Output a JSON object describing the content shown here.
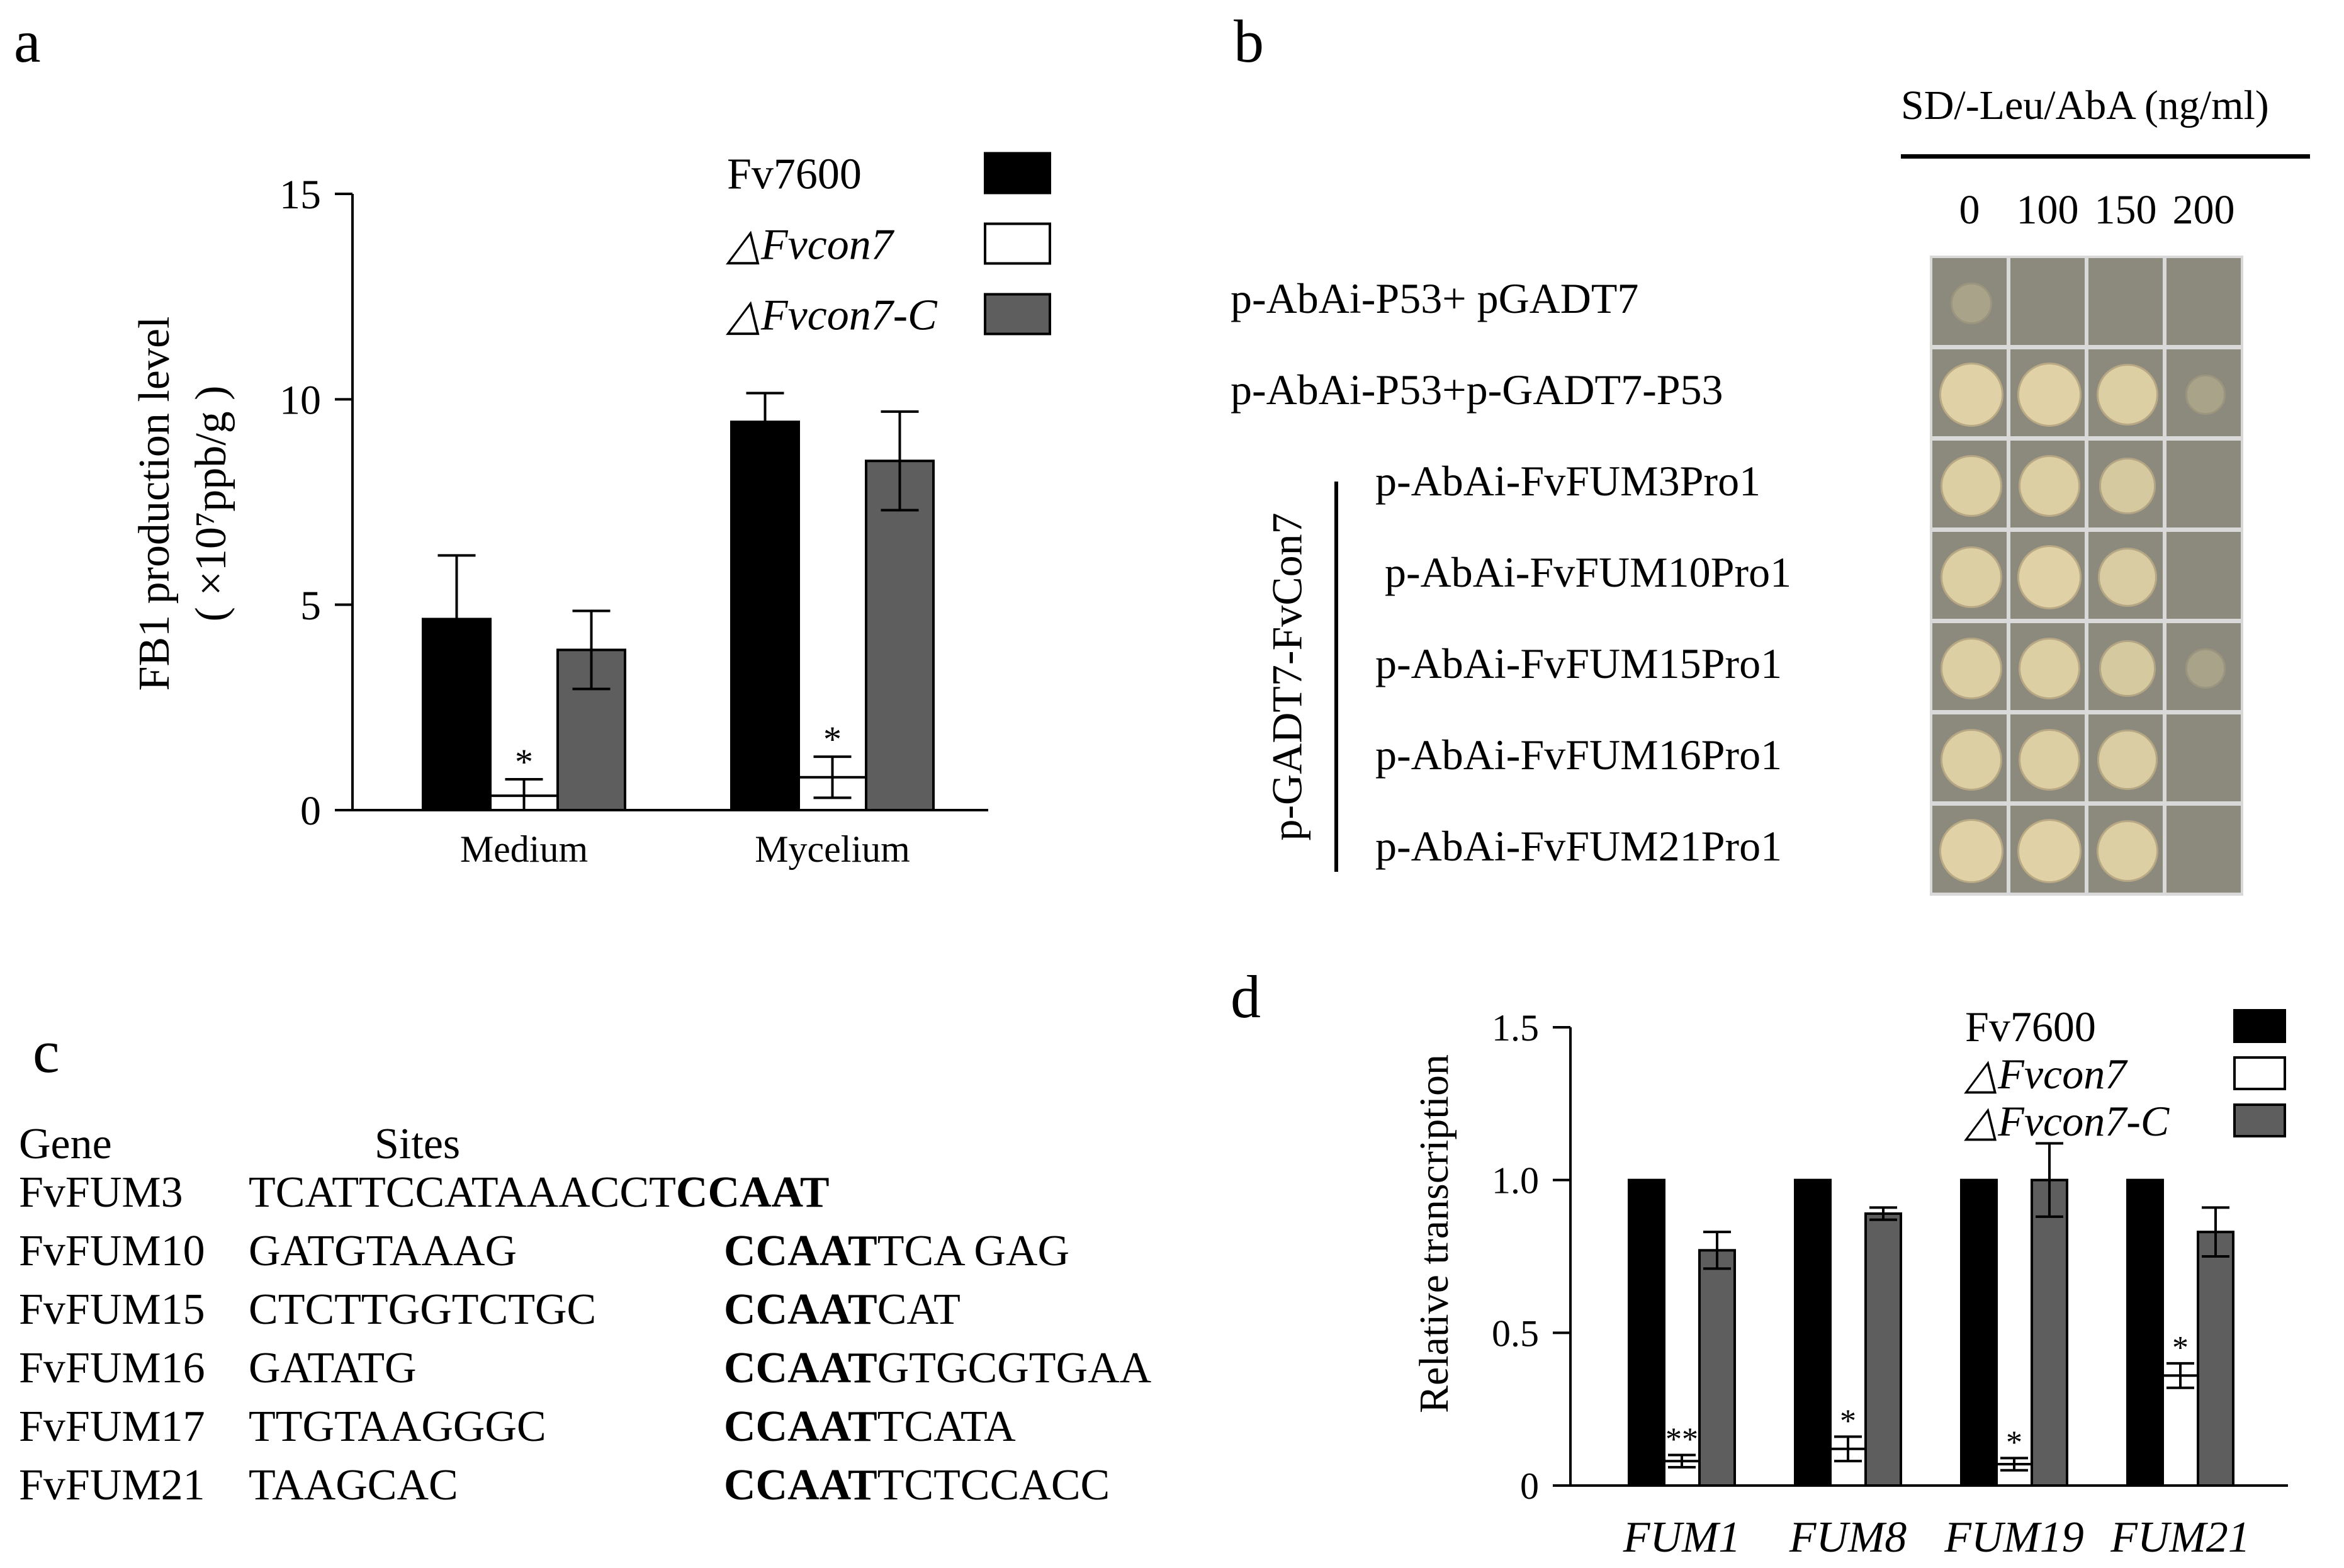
{
  "panel_labels": {
    "a": "a",
    "b": "b",
    "c": "c",
    "d": "d"
  },
  "colors": {
    "Fv7600": "#000000",
    "dFvcon7": "#ffffff",
    "dFvcon7C": "#5e5e5e",
    "plate_bg": "#8c8a7c",
    "colony": "#e0d2a6",
    "colony_edge": "#b9a985"
  },
  "chart_data": [
    {
      "type": "bar",
      "panel": "a",
      "ylabel_line1": "FB1 production level",
      "ylabel_line2": "( ×10⁷ppb/g )",
      "ylim": [
        0,
        15
      ],
      "yticks": [
        "0",
        "5",
        "10",
        "15"
      ],
      "categories": [
        "Medium",
        "Mycelium"
      ],
      "legend": [
        "Fv7600",
        "△Fvcon7",
        "△Fvcon7-C"
      ],
      "series": [
        {
          "name": "Fv7600",
          "values": [
            4.65,
            9.45
          ],
          "errors": [
            1.55,
            0.7
          ]
        },
        {
          "name": "△Fvcon7",
          "values": [
            0.35,
            0.8
          ],
          "errors": [
            0.4,
            0.5
          ]
        },
        {
          "name": "△Fvcon7-C",
          "values": [
            3.9,
            8.5
          ],
          "errors": [
            0.95,
            1.2
          ]
        }
      ],
      "significance": [
        {
          "series": 1,
          "category": 0,
          "mark": "*"
        },
        {
          "series": 1,
          "category": 1,
          "mark": "*"
        }
      ]
    },
    {
      "type": "bar",
      "panel": "d",
      "ylabel": "Relative transcription",
      "ylim": [
        0,
        1.5
      ],
      "yticks": [
        "0",
        "0.5",
        "1.0",
        "1.5"
      ],
      "categories": [
        "FUM1",
        "FUM8",
        "FUM19",
        "FUM21"
      ],
      "legend": [
        "Fv7600",
        "△Fvcon7",
        "△Fvcon7-C"
      ],
      "series": [
        {
          "name": "Fv7600",
          "values": [
            1.0,
            1.0,
            1.0,
            1.0
          ],
          "errors": [
            0,
            0,
            0,
            0
          ]
        },
        {
          "name": "△Fvcon7",
          "values": [
            0.08,
            0.12,
            0.07,
            0.36
          ],
          "errors": [
            0.02,
            0.04,
            0.02,
            0.04
          ]
        },
        {
          "name": "△Fvcon7-C",
          "values": [
            0.77,
            0.89,
            1.0,
            0.83
          ],
          "errors": [
            0.06,
            0.02,
            0.12,
            0.08
          ]
        }
      ],
      "significance": [
        {
          "series": 1,
          "category": 0,
          "mark": "**"
        },
        {
          "series": 1,
          "category": 1,
          "mark": "*"
        },
        {
          "series": 1,
          "category": 2,
          "mark": "*"
        },
        {
          "series": 1,
          "category": 3,
          "mark": "*"
        }
      ]
    }
  ],
  "panel_b": {
    "header": "SD/-Leu/AbA (ng/ml)",
    "concentrations": [
      "0",
      "100",
      "150",
      "200"
    ],
    "group_label": "p-GADT7-FvCon7",
    "rows": [
      {
        "label": "p-AbAi-P53+ pGADT7",
        "growth": [
          0.15,
          0,
          0,
          0
        ]
      },
      {
        "label": "p-AbAi-P53+p-GADT7-P53",
        "growth": [
          1,
          1,
          0.9,
          0.1
        ]
      },
      {
        "label": "p-AbAi-FvFUM3Pro1",
        "growth": [
          0.9,
          0.9,
          0.7,
          0
        ]
      },
      {
        "label": "p-AbAi-FvFUM10Pro1",
        "growth": [
          0.9,
          1,
          0.8,
          0.05
        ]
      },
      {
        "label": "p-AbAi-FvFUM15Pro1",
        "growth": [
          0.9,
          0.9,
          0.7,
          0.1
        ]
      },
      {
        "label": "p-AbAi-FvFUM16Pro1",
        "growth": [
          0.9,
          0.9,
          0.85,
          0
        ]
      },
      {
        "label": "p-AbAi-FvFUM21Pro1",
        "growth": [
          1,
          1,
          0.9,
          0
        ]
      }
    ]
  },
  "panel_c": {
    "header_gene": "Gene",
    "header_sites": "Sites",
    "rows": [
      {
        "gene": "FvFUM3",
        "pre": "TCATTCCATAAACCT",
        "motif": "CCAAT",
        "post": ""
      },
      {
        "gene": "FvFUM10",
        "pre": "GATGTAAAG",
        "motif": "CCAAT",
        "post": "TCA GAG"
      },
      {
        "gene": "FvFUM15",
        "pre": "CTCTTGGTCTGC",
        "motif": "CCAAT",
        "post": "CAT"
      },
      {
        "gene": "FvFUM16",
        "pre": "GATATG",
        "motif": "CCAAT",
        "post": "GTGCGTGAA"
      },
      {
        "gene": "FvFUM17",
        "pre": "TTGTAAGGGC",
        "motif": "CCAAT",
        "post": "TCATA"
      },
      {
        "gene": "FvFUM21",
        "pre": "TAAGCAC",
        "motif": "CCAAT",
        "post": "TCTCCACC"
      }
    ]
  }
}
